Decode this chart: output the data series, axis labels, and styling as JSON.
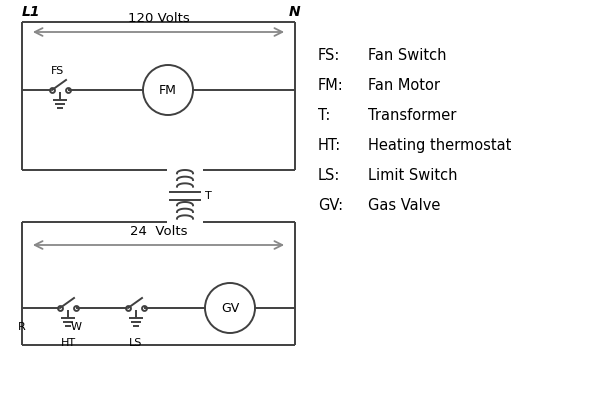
{
  "background_color": "#ffffff",
  "line_color": "#404040",
  "arrow_color": "#888888",
  "text_color": "#000000",
  "legend_items": [
    [
      "FS:",
      "Fan Switch"
    ],
    [
      "FM:",
      "Fan Motor"
    ],
    [
      "T:",
      "Transformer"
    ],
    [
      "HT:",
      "Heating thermostat"
    ],
    [
      "LS:",
      "Limit Switch"
    ],
    [
      "GV:",
      "Gas Valve"
    ]
  ],
  "figsize": [
    5.9,
    4.0
  ],
  "dpi": 100
}
